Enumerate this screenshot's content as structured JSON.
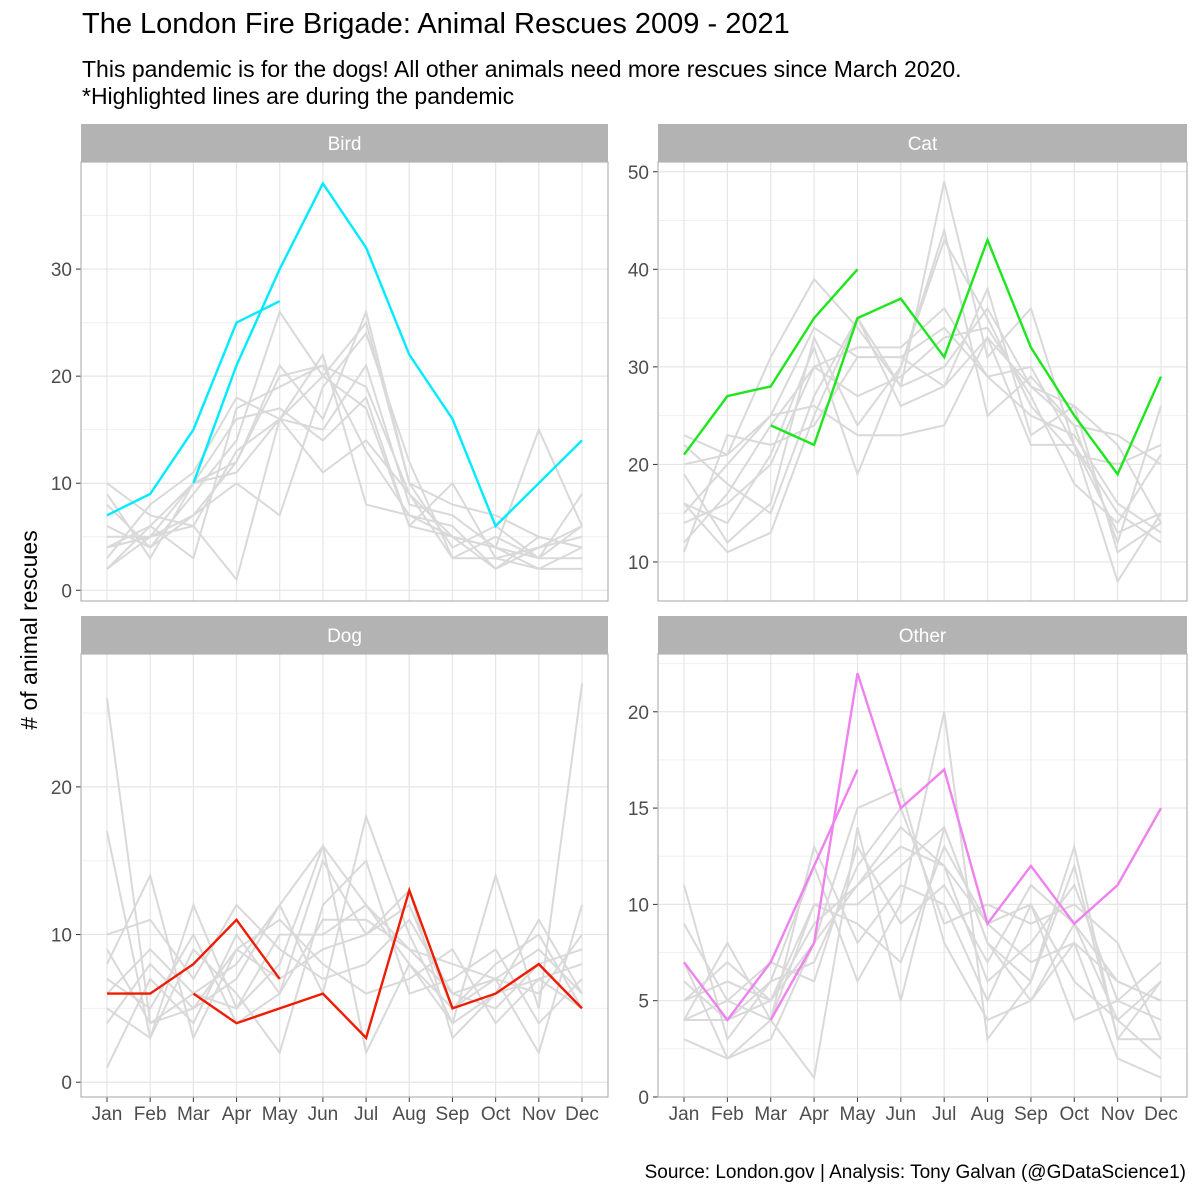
{
  "title": "The London Fire Brigade: Animal Rescues 2009 - 2021",
  "subtitle_line1": "This pandemic is for the dogs! All other animals need more rescues since March 2020.",
  "subtitle_line2": "*Highlighted lines are during the pandemic",
  "caption": "Source: London.gov  |  Analysis: Tony Galvan (@GDataScience1)",
  "colors": {
    "background_line": "#d9d9d9",
    "strip": "#b3b3b3",
    "grid": "#e6e6e6",
    "border": "#b3b3b3"
  },
  "chart_data": [
    {
      "type": "line",
      "facet": "Bird",
      "categories": [
        "Jan",
        "Feb",
        "Mar",
        "Apr",
        "May",
        "Jun",
        "Jul",
        "Aug",
        "Sep",
        "Oct",
        "Nov",
        "Dec"
      ],
      "ylabel": "# of animal rescues",
      "ylim": [
        -1,
        40
      ],
      "yticks": [
        0,
        10,
        20,
        30
      ],
      "highlight_color": "#00ebff",
      "background_series": [
        [
          10,
          7,
          6,
          1,
          16,
          20,
          25,
          10,
          8,
          7,
          5,
          4
        ],
        [
          9,
          3,
          10,
          12,
          20,
          21,
          19,
          9,
          5,
          4,
          3,
          3
        ],
        [
          5,
          5,
          6,
          13,
          16,
          15,
          21,
          8,
          7,
          4,
          2,
          4
        ],
        [
          2,
          6,
          10,
          11,
          16,
          11,
          14,
          9,
          3,
          3,
          4,
          6
        ],
        [
          4,
          6,
          3,
          17,
          19,
          21,
          13,
          7,
          6,
          2,
          4,
          5
        ],
        [
          6,
          4,
          9,
          14,
          26,
          20,
          17,
          6,
          10,
          3,
          2,
          2
        ],
        [
          3,
          8,
          11,
          18,
          16,
          22,
          8,
          7,
          5,
          4,
          15,
          6
        ],
        [
          2,
          5,
          7,
          12,
          21,
          16,
          26,
          10,
          4,
          6,
          3,
          9
        ],
        [
          8,
          4,
          7,
          10,
          7,
          19,
          24,
          12,
          3,
          5,
          3,
          6
        ],
        [
          4,
          5,
          10,
          16,
          17,
          14,
          18,
          6,
          5,
          2,
          5,
          4
        ]
      ],
      "highlight_series": [
        [
          7,
          9,
          15,
          25,
          27
        ],
        [
          null,
          null,
          10,
          21,
          30,
          38,
          32,
          22,
          16,
          6,
          10,
          14
        ]
      ]
    },
    {
      "type": "line",
      "facet": "Cat",
      "categories": [
        "Jan",
        "Feb",
        "Mar",
        "Apr",
        "May",
        "Jun",
        "Jul",
        "Aug",
        "Sep",
        "Oct",
        "Nov",
        "Dec"
      ],
      "ylim": [
        6,
        51
      ],
      "yticks": [
        10,
        20,
        30,
        40,
        50
      ],
      "highlight_color": "#1ee61e",
      "background_series": [
        [
          23,
          21,
          31,
          39,
          34,
          28,
          49,
          31,
          36,
          22,
          8,
          15
        ],
        [
          16,
          11,
          13,
          25,
          35,
          26,
          28,
          38,
          23,
          26,
          11,
          14
        ],
        [
          12,
          17,
          24,
          30,
          27,
          29,
          33,
          34,
          27,
          18,
          14,
          21
        ],
        [
          16,
          14,
          21,
          32,
          19,
          30,
          44,
          25,
          29,
          24,
          12,
          26
        ],
        [
          11,
          23,
          22,
          24,
          31,
          31,
          34,
          29,
          30,
          22,
          15,
          12
        ],
        [
          15,
          20,
          25,
          26,
          23,
          23,
          24,
          33,
          22,
          22,
          13,
          15
        ],
        [
          19,
          12,
          16,
          33,
          24,
          30,
          43,
          35,
          26,
          21,
          20,
          22
        ],
        [
          14,
          16,
          20,
          30,
          32,
          32,
          36,
          29,
          25,
          23,
          16,
          13
        ],
        [
          22,
          18,
          15,
          27,
          35,
          28,
          30,
          36,
          28,
          26,
          22,
          14
        ],
        [
          20,
          21,
          25,
          34,
          31,
          31,
          28,
          33,
          28,
          24,
          23,
          20
        ]
      ],
      "highlight_series": [
        [
          21,
          27,
          28,
          35,
          40
        ],
        [
          null,
          null,
          24,
          22,
          35,
          37,
          31,
          43,
          32,
          25,
          19,
          29
        ]
      ]
    },
    {
      "type": "line",
      "facet": "Dog",
      "categories": [
        "Jan",
        "Feb",
        "Mar",
        "Apr",
        "May",
        "Jun",
        "Jul",
        "Aug",
        "Sep",
        "Oct",
        "Nov",
        "Dec"
      ],
      "ylim": [
        -1,
        29
      ],
      "yticks": [
        0,
        10,
        20
      ],
      "highlight_color": "#ee1c00",
      "background_series": [
        [
          26,
          4,
          6,
          8,
          12,
          6,
          18,
          10,
          4,
          14,
          5,
          27
        ],
        [
          17,
          3,
          12,
          5,
          8,
          16,
          12,
          9,
          8,
          7,
          2,
          12
        ],
        [
          1,
          7,
          4,
          10,
          6,
          15,
          10,
          13,
          3,
          6,
          11,
          6
        ],
        [
          8,
          14,
          3,
          9,
          11,
          8,
          6,
          7,
          9,
          4,
          7,
          8
        ],
        [
          5,
          3,
          9,
          6,
          2,
          12,
          15,
          6,
          7,
          9,
          4,
          7
        ],
        [
          10,
          11,
          7,
          12,
          9,
          7,
          8,
          11,
          6,
          5,
          8,
          9
        ],
        [
          4,
          8,
          5,
          7,
          12,
          16,
          2,
          8,
          5,
          8,
          10,
          5
        ],
        [
          7,
          5,
          10,
          4,
          6,
          11,
          11,
          9,
          6,
          7,
          6,
          10
        ],
        [
          9,
          4,
          5,
          9,
          7,
          9,
          10,
          12,
          5,
          7,
          9,
          6
        ],
        [
          6,
          9,
          6,
          5,
          10,
          10,
          12,
          8,
          4,
          6,
          7,
          5
        ]
      ],
      "highlight_series": [
        [
          6,
          6,
          8,
          11,
          7
        ],
        [
          null,
          null,
          6,
          4,
          5,
          6,
          3,
          13,
          5,
          6,
          8,
          5
        ]
      ]
    },
    {
      "type": "line",
      "facet": "Other",
      "categories": [
        "Jan",
        "Feb",
        "Mar",
        "Apr",
        "May",
        "Jun",
        "Jul",
        "Aug",
        "Sep",
        "Oct",
        "Nov",
        "Dec"
      ],
      "ylim": [
        0,
        23
      ],
      "yticks": [
        0,
        5,
        10,
        15,
        20
      ],
      "highlight_color": "#ee82ee",
      "background_series": [
        [
          11,
          3,
          6,
          12,
          6,
          10,
          20,
          3,
          6,
          13,
          3,
          6
        ],
        [
          4,
          8,
          4,
          1,
          14,
          5,
          14,
          8,
          6,
          12,
          3,
          3
        ],
        [
          3,
          2,
          3,
          8,
          15,
          16,
          8,
          4,
          5,
          8,
          2,
          1
        ],
        [
          5,
          7,
          5,
          10,
          9,
          7,
          13,
          9,
          10,
          4,
          5,
          7
        ],
        [
          6,
          4,
          5,
          9,
          11,
          13,
          12,
          6,
          8,
          11,
          5,
          4
        ],
        [
          4,
          5,
          4,
          13,
          8,
          11,
          10,
          5,
          10,
          6,
          4,
          2
        ],
        [
          9,
          5,
          7,
          6,
          13,
          9,
          11,
          7,
          11,
          9,
          6,
          5
        ],
        [
          4,
          4,
          6,
          7,
          12,
          15,
          9,
          10,
          9,
          10,
          8,
          3
        ],
        [
          7,
          2,
          4,
          10,
          10,
          12,
          14,
          8,
          5,
          9,
          4,
          6
        ],
        [
          5,
          6,
          5,
          8,
          11,
          14,
          12,
          9,
          7,
          8,
          6,
          5
        ]
      ],
      "highlight_series": [
        [
          7,
          4,
          7,
          12,
          17
        ],
        [
          null,
          null,
          4,
          8,
          22,
          15,
          17,
          9,
          12,
          9,
          11,
          15
        ]
      ]
    }
  ]
}
